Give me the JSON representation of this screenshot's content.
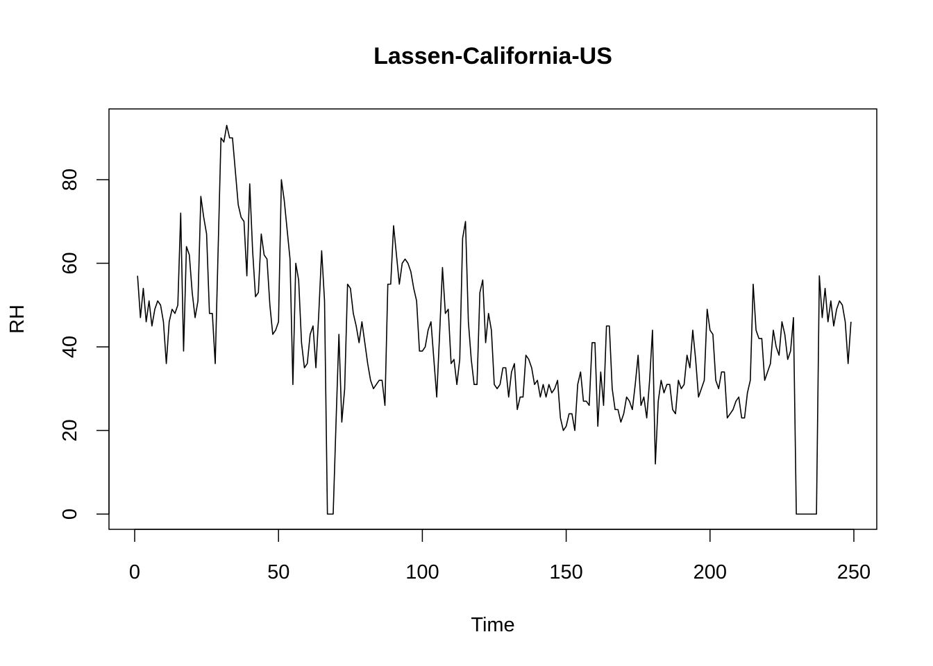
{
  "chart_data": {
    "type": "line",
    "title": "Lassen-California-US",
    "xlabel": "Time",
    "ylabel": "RH",
    "xlim": [
      0,
      250
    ],
    "ylim": [
      0,
      93
    ],
    "x_ticks": [
      0,
      50,
      100,
      150,
      200,
      250
    ],
    "y_ticks": [
      0,
      20,
      40,
      60,
      80
    ],
    "grid": false,
    "legend": "none",
    "series": [
      {
        "color": "#000000",
        "values": [
          57,
          47,
          54,
          46,
          51,
          45,
          49,
          51,
          50,
          46,
          36,
          46,
          49,
          48,
          50,
          72,
          39,
          64,
          62,
          53,
          47,
          51,
          76,
          71,
          67,
          48,
          48,
          36,
          63,
          90,
          89,
          93,
          90,
          90,
          82,
          74,
          71,
          70,
          57,
          79,
          63,
          52,
          53,
          67,
          62,
          61,
          50,
          43,
          44,
          46,
          80,
          75,
          68,
          61,
          31,
          60,
          56,
          41,
          35,
          36,
          43,
          45,
          35,
          48,
          63,
          51,
          0,
          0,
          0,
          22,
          43,
          22,
          30,
          55,
          54,
          48,
          45,
          41,
          46,
          41,
          36,
          32,
          30,
          31,
          32,
          32,
          26,
          55,
          55,
          69,
          62,
          55,
          60,
          61,
          60,
          58,
          54,
          51,
          39,
          39,
          40,
          44,
          46,
          37,
          28,
          43,
          59,
          48,
          49,
          36,
          37,
          31,
          37,
          66,
          70,
          46,
          37,
          31,
          31,
          53,
          56,
          41,
          48,
          44,
          31,
          30,
          31,
          35,
          35,
          28,
          34,
          36,
          25,
          28,
          28,
          38,
          37,
          35,
          31,
          32,
          28,
          31,
          28,
          31,
          29,
          30,
          32,
          23,
          20,
          21,
          24,
          24,
          20,
          31,
          34,
          27,
          27,
          26,
          41,
          41,
          21,
          34,
          26,
          45,
          45,
          30,
          25,
          25,
          22,
          24,
          28,
          27,
          25,
          31,
          38,
          26,
          28,
          23,
          32,
          44,
          12,
          27,
          32,
          29,
          31,
          31,
          25,
          24,
          32,
          30,
          31,
          38,
          35,
          44,
          37,
          28,
          30,
          32,
          49,
          44,
          43,
          32,
          30,
          34,
          34,
          23,
          24,
          25,
          27,
          28,
          23,
          23,
          29,
          32,
          55,
          44,
          42,
          42,
          32,
          34,
          36,
          44,
          40,
          38,
          46,
          43,
          37,
          39,
          47,
          0,
          0,
          0,
          0,
          0,
          0,
          0,
          0,
          57,
          47,
          54,
          46,
          51,
          45,
          49,
          51,
          50,
          46,
          36,
          46
        ]
      }
    ]
  }
}
